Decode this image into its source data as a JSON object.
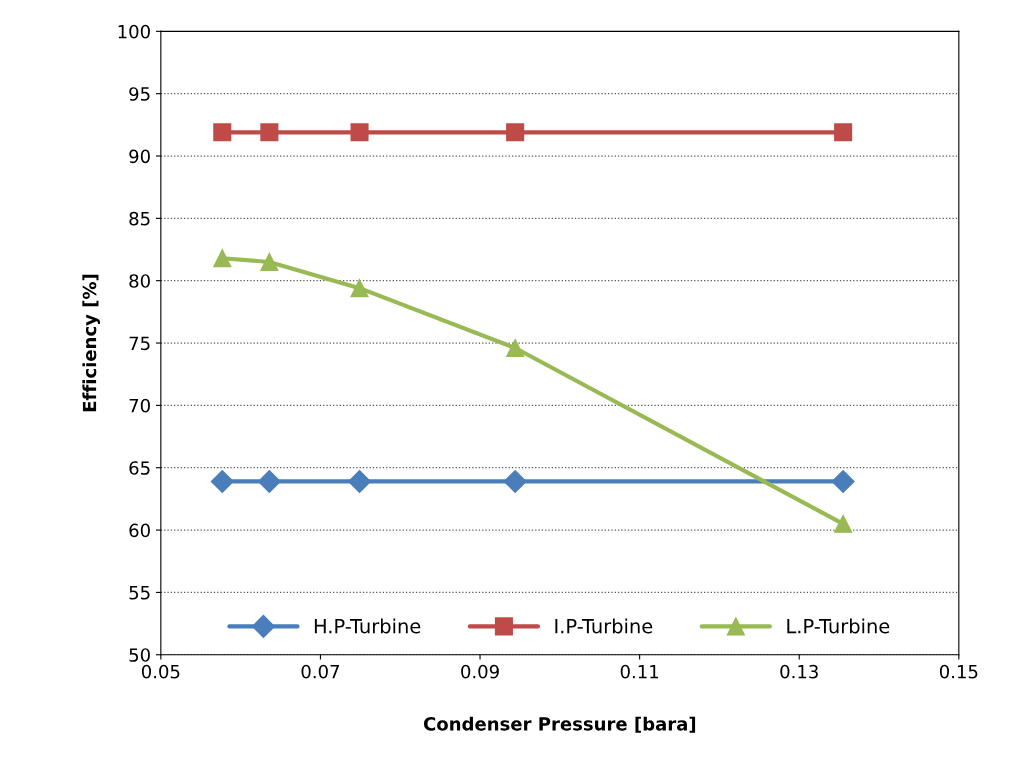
{
  "chart_data": {
    "type": "line",
    "xlabel": "Condenser Pressure [bara]",
    "ylabel": "Efficiency [%]",
    "xlim": [
      0.05,
      0.15
    ],
    "xticks": [
      {
        "value": 0.05,
        "label": "0.05"
      },
      {
        "value": 0.07,
        "label": "0.07"
      },
      {
        "value": 0.09,
        "label": "0.09"
      },
      {
        "value": 0.11,
        "label": "0.11"
      },
      {
        "value": 0.13,
        "label": "0.13"
      },
      {
        "value": 0.15,
        "label": "0.15"
      }
    ],
    "ylim": [
      50,
      100
    ],
    "yticks": [
      50,
      55,
      60,
      65,
      70,
      75,
      80,
      85,
      90,
      95,
      100
    ],
    "grid": "y",
    "legend": "bottom",
    "x": [
      0.0577,
      0.0636,
      0.0749,
      0.0944,
      0.1355
    ],
    "series": [
      {
        "name": "H.P-Turbine",
        "color": "#4a7ebb",
        "marker": "diamond",
        "values": [
          63.9,
          63.9,
          63.9,
          63.9,
          63.9
        ]
      },
      {
        "name": "I.P-Turbine",
        "color": "#be4b48",
        "marker": "square",
        "values": [
          91.9,
          91.9,
          91.9,
          91.9,
          91.9
        ]
      },
      {
        "name": "L.P-Turbine",
        "color": "#98b954",
        "marker": "triangle",
        "values": [
          81.8,
          81.5,
          79.4,
          74.6,
          60.5
        ]
      }
    ]
  }
}
